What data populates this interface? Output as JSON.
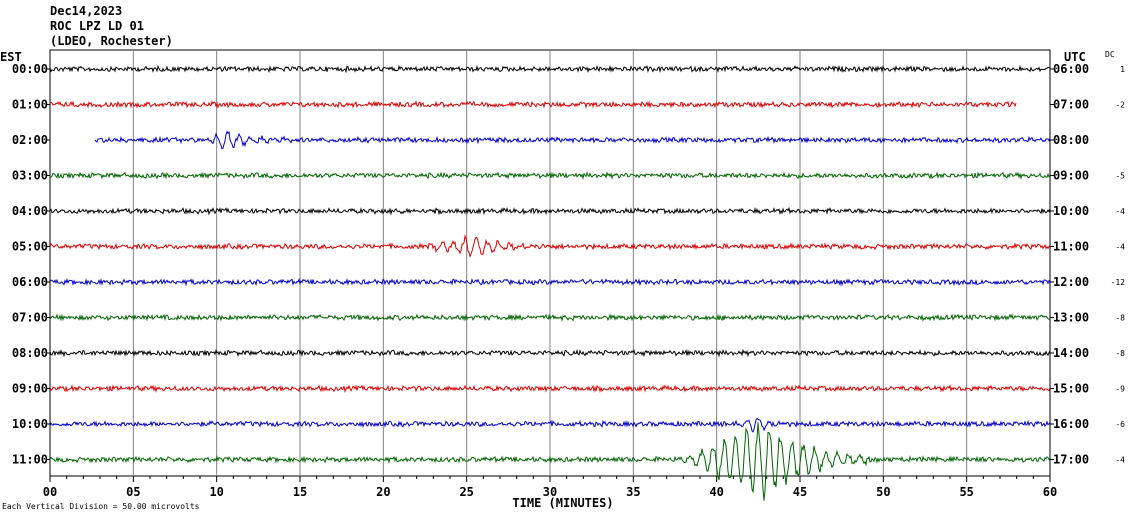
{
  "header": {
    "date": "Dec14,2023",
    "station": "ROC LPZ LD 01",
    "network": "(LDEO, Rochester)"
  },
  "left_axis_label": "EST",
  "right_axis_label": "UTC",
  "dc_label": "DC",
  "footer_note": "Each Vertical Division =   50.00 microvolts",
  "colors": {
    "trace_cycle": [
      "#000000",
      "#dd0000",
      "#0000cc",
      "#006600"
    ],
    "grid": "#808080",
    "axis": "#000000"
  },
  "chart_data": {
    "type": "line",
    "title": "",
    "xlabel": "TIME (MINUTES)",
    "xlim": [
      0,
      60
    ],
    "x_ticks": [
      "00",
      "05",
      "10",
      "15",
      "20",
      "25",
      "30",
      "35",
      "40",
      "45",
      "50",
      "55",
      "60"
    ],
    "grid": true,
    "rows": [
      {
        "est": "00:00",
        "utc": "06:00",
        "dc": "1",
        "start_min": 0,
        "end_min": 60,
        "events": []
      },
      {
        "est": "01:00",
        "utc": "07:00",
        "dc": "-2",
        "start_min": 0,
        "end_min": 58,
        "events": []
      },
      {
        "est": "02:00",
        "utc": "08:00",
        "dc": "",
        "start_min": 2.7,
        "end_min": 60,
        "events": [
          {
            "start": 9.5,
            "end": 15,
            "peak": 10.5,
            "amp": 11
          }
        ]
      },
      {
        "est": "03:00",
        "utc": "09:00",
        "dc": "-5",
        "start_min": 0,
        "end_min": 60,
        "events": []
      },
      {
        "est": "04:00",
        "utc": "10:00",
        "dc": "-4",
        "start_min": 0,
        "end_min": 60,
        "events": [
          {
            "start": 20,
            "end": 23,
            "peak": 21,
            "amp": 1.5
          }
        ]
      },
      {
        "est": "05:00",
        "utc": "11:00",
        "dc": "-4",
        "start_min": 0,
        "end_min": 60,
        "events": [
          {
            "start": 22,
            "end": 30,
            "peak": 25.5,
            "amp": 11
          }
        ]
      },
      {
        "est": "06:00",
        "utc": "12:00",
        "dc": "-12",
        "start_min": 0,
        "end_min": 60,
        "events": []
      },
      {
        "est": "07:00",
        "utc": "13:00",
        "dc": "-8",
        "start_min": 0,
        "end_min": 60,
        "events": []
      },
      {
        "est": "08:00",
        "utc": "14:00",
        "dc": "-8",
        "start_min": 0,
        "end_min": 60,
        "events": []
      },
      {
        "est": "09:00",
        "utc": "15:00",
        "dc": "-9",
        "start_min": 0,
        "end_min": 60,
        "events": []
      },
      {
        "est": "10:00",
        "utc": "16:00",
        "dc": "-6",
        "start_min": 0,
        "end_min": 60,
        "events": [
          {
            "start": 41,
            "end": 44,
            "peak": 42.5,
            "amp": 9
          }
        ]
      },
      {
        "est": "11:00",
        "utc": "17:00",
        "dc": "-4",
        "start_min": 0,
        "end_min": 60,
        "events": [
          {
            "start": 38,
            "end": 49,
            "peak": 43,
            "amp": 45
          }
        ]
      }
    ]
  }
}
